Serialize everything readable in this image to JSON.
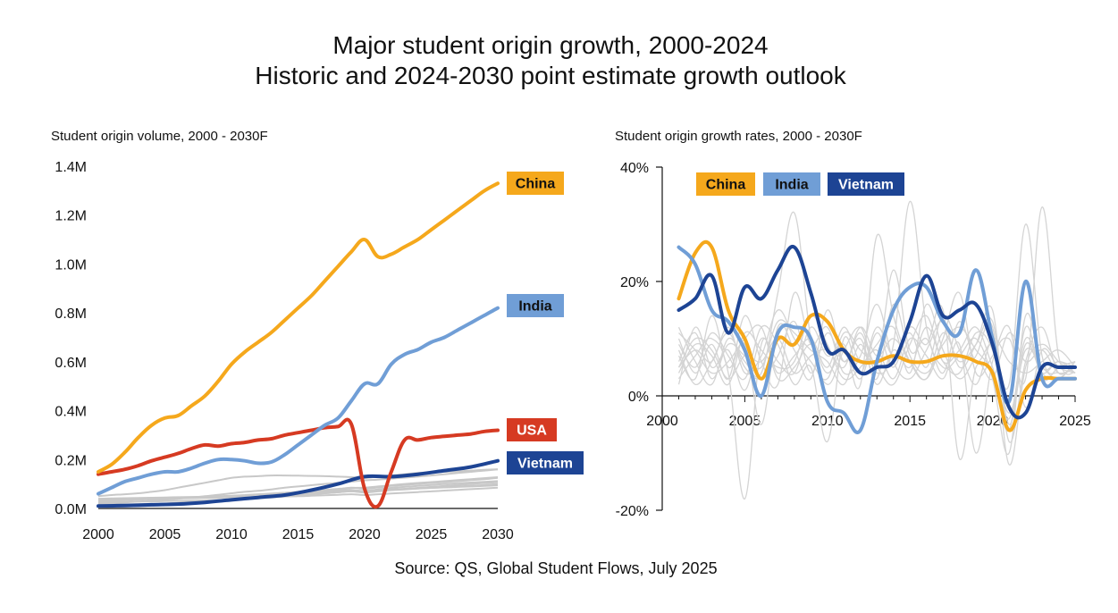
{
  "page": {
    "title_line1": "Major student origin growth, 2000-2024",
    "title_line2": "Historic and 2024-2030 point estimate growth outlook",
    "source": "Source: QS, Global Student Flows, July 2025"
  },
  "colors": {
    "China": "#f5a81c",
    "India": "#709ed6",
    "USA": "#d63a22",
    "Vietnam": "#1d4494",
    "background_series": "#c8c8c8",
    "axis": "#111111"
  },
  "chart_data": [
    {
      "type": "line",
      "title": "Student origin volume, 2000 - 2030F",
      "xlim": [
        2000,
        2030
      ],
      "ylim": [
        0,
        1400000
      ],
      "x_ticks": [
        2000,
        2005,
        2010,
        2015,
        2020,
        2025,
        2030
      ],
      "y_ticks": [
        {
          "value": 0,
          "label": "0.0M"
        },
        {
          "value": 200000,
          "label": "0.2M"
        },
        {
          "value": 400000,
          "label": "0.4M"
        },
        {
          "value": 600000,
          "label": "0.6M"
        },
        {
          "value": 800000,
          "label": "0.8M"
        },
        {
          "value": 1000000,
          "label": "1.0M"
        },
        {
          "value": 1200000,
          "label": "1.2M"
        },
        {
          "value": 1400000,
          "label": "1.4M"
        }
      ],
      "grid": false,
      "legend": "labels at line ends",
      "series": [
        {
          "name": "China",
          "x": [
            2000,
            2001,
            2002,
            2003,
            2004,
            2005,
            2006,
            2007,
            2008,
            2009,
            2010,
            2011,
            2012,
            2013,
            2014,
            2015,
            2016,
            2017,
            2018,
            2019,
            2020,
            2021,
            2022,
            2023,
            2024,
            2025,
            2026,
            2027,
            2028,
            2029,
            2030
          ],
          "values": [
            150000,
            180000,
            230000,
            290000,
            340000,
            370000,
            380000,
            420000,
            460000,
            520000,
            590000,
            640000,
            680000,
            720000,
            770000,
            820000,
            870000,
            930000,
            990000,
            1050000,
            1100000,
            1030000,
            1040000,
            1070000,
            1100000,
            1140000,
            1180000,
            1220000,
            1260000,
            1300000,
            1330000
          ]
        },
        {
          "name": "India",
          "x": [
            2000,
            2001,
            2002,
            2003,
            2004,
            2005,
            2006,
            2007,
            2008,
            2009,
            2010,
            2011,
            2012,
            2013,
            2014,
            2015,
            2016,
            2017,
            2018,
            2019,
            2020,
            2021,
            2022,
            2023,
            2024,
            2025,
            2026,
            2027,
            2028,
            2029,
            2030
          ],
          "values": [
            60000,
            85000,
            110000,
            125000,
            140000,
            150000,
            150000,
            165000,
            185000,
            200000,
            200000,
            195000,
            185000,
            190000,
            220000,
            260000,
            300000,
            340000,
            370000,
            440000,
            510000,
            510000,
            590000,
            630000,
            650000,
            680000,
            700000,
            730000,
            760000,
            790000,
            820000
          ]
        },
        {
          "name": "USA",
          "x": [
            2000,
            2001,
            2002,
            2003,
            2004,
            2005,
            2006,
            2007,
            2008,
            2009,
            2010,
            2011,
            2012,
            2013,
            2014,
            2015,
            2016,
            2017,
            2018,
            2019,
            2020,
            2021,
            2022,
            2023,
            2024,
            2025,
            2026,
            2027,
            2028,
            2029,
            2030
          ],
          "values": [
            140000,
            150000,
            160000,
            175000,
            195000,
            210000,
            225000,
            245000,
            260000,
            255000,
            265000,
            270000,
            280000,
            285000,
            300000,
            310000,
            320000,
            330000,
            335000,
            345000,
            80000,
            10000,
            150000,
            280000,
            280000,
            290000,
            295000,
            300000,
            305000,
            315000,
            320000
          ]
        },
        {
          "name": "Vietnam",
          "x": [
            2000,
            2002,
            2004,
            2006,
            2008,
            2010,
            2012,
            2014,
            2016,
            2018,
            2020,
            2022,
            2024,
            2026,
            2028,
            2030
          ],
          "values": [
            10000,
            12000,
            15000,
            18000,
            25000,
            35000,
            45000,
            55000,
            75000,
            100000,
            130000,
            130000,
            140000,
            155000,
            170000,
            195000
          ]
        }
      ],
      "labels": [
        {
          "series": "China",
          "text": "China"
        },
        {
          "series": "India",
          "text": "India"
        },
        {
          "series": "USA",
          "text": "USA"
        },
        {
          "series": "Vietnam",
          "text": "Vietnam"
        }
      ]
    },
    {
      "type": "line",
      "title": "Student origin growth rates, 2000 - 2030F",
      "xlim": [
        2000,
        2025
      ],
      "ylim": [
        -20,
        40
      ],
      "x_ticks": [
        2000,
        2005,
        2010,
        2015,
        2020,
        2025
      ],
      "y_ticks": [
        {
          "value": -20,
          "label": "-20%"
        },
        {
          "value": 0,
          "label": "0%"
        },
        {
          "value": 20,
          "label": "20%"
        },
        {
          "value": 40,
          "label": "40%"
        }
      ],
      "grid": false,
      "legend": "top-left",
      "series": [
        {
          "name": "China",
          "x": [
            2001,
            2002,
            2003,
            2004,
            2005,
            2006,
            2007,
            2008,
            2009,
            2010,
            2011,
            2012,
            2013,
            2014,
            2015,
            2016,
            2017,
            2018,
            2019,
            2020,
            2021,
            2022,
            2023,
            2024,
            2025
          ],
          "values": [
            17,
            25,
            26,
            15,
            10,
            3,
            10,
            9,
            14,
            13,
            8,
            6,
            6,
            7,
            6,
            6,
            7,
            7,
            6,
            4,
            -6,
            1,
            3,
            3,
            3
          ]
        },
        {
          "name": "India",
          "x": [
            2001,
            2002,
            2003,
            2004,
            2005,
            2006,
            2007,
            2008,
            2009,
            2010,
            2011,
            2012,
            2013,
            2014,
            2015,
            2016,
            2017,
            2018,
            2019,
            2020,
            2021,
            2022,
            2023,
            2024,
            2025
          ],
          "values": [
            26,
            23,
            15,
            13,
            8,
            0,
            11,
            12,
            10,
            -1,
            -3,
            -6,
            6,
            15,
            19,
            19,
            13,
            11,
            22,
            10,
            -1,
            20,
            3,
            3,
            3
          ]
        },
        {
          "name": "Vietnam",
          "x": [
            2001,
            2002,
            2003,
            2004,
            2005,
            2006,
            2007,
            2008,
            2009,
            2010,
            2011,
            2012,
            2013,
            2014,
            2015,
            2016,
            2017,
            2018,
            2019,
            2020,
            2021,
            2022,
            2023,
            2024,
            2025
          ],
          "values": [
            15,
            17,
            21,
            11,
            19,
            17,
            22,
            26,
            18,
            8,
            8,
            4,
            5,
            6,
            13,
            21,
            14,
            15,
            16,
            9,
            -2,
            -3,
            5,
            5,
            5
          ]
        }
      ],
      "legend_entries": [
        "China",
        "India",
        "Vietnam"
      ]
    }
  ],
  "background_series_left": [
    [
      20000,
      22000,
      25000,
      28000,
      32000,
      36000,
      40000,
      45000,
      50000,
      56000,
      62000,
      68000,
      72000,
      78000,
      85000,
      90000,
      95000,
      100000,
      105000,
      110000,
      115000,
      118000,
      122000,
      126000,
      130000,
      135000,
      140000,
      145000,
      150000,
      155000,
      160000
    ],
    [
      30000,
      32000,
      34000,
      36000,
      38000,
      40000,
      42000,
      44000,
      46000,
      48000,
      50000,
      53000,
      56000,
      60000,
      64000,
      68000,
      72000,
      76000,
      80000,
      84000,
      85000,
      90000,
      95000,
      100000,
      104000,
      108000,
      112000,
      116000,
      120000,
      124000,
      128000
    ],
    [
      50000,
      55000,
      58000,
      62000,
      68000,
      75000,
      85000,
      95000,
      105000,
      115000,
      125000,
      130000,
      132000,
      135000,
      135000,
      134000,
      133000,
      132000,
      130000,
      128000,
      125000,
      130000,
      135000,
      140000,
      145000,
      148000,
      150000,
      152000,
      155000,
      158000,
      160000
    ],
    [
      10000,
      12000,
      14000,
      16000,
      18000,
      20000,
      23000,
      26000,
      30000,
      34000,
      38000,
      42000,
      46000,
      50000,
      54000,
      58000,
      62000,
      66000,
      70000,
      74000,
      72000,
      78000,
      84000,
      88000,
      92000,
      96000,
      100000,
      103000,
      106000,
      109000,
      112000
    ],
    [
      40000,
      41000,
      42000,
      43000,
      44000,
      45000,
      46000,
      47000,
      48000,
      50000,
      52000,
      55000,
      58000,
      61000,
      64000,
      67000,
      70000,
      72000,
      74000,
      76000,
      70000,
      74000,
      78000,
      80000,
      82000,
      84000,
      86000,
      88000,
      90000,
      92000,
      95000
    ],
    [
      5000,
      6000,
      8000,
      10000,
      12000,
      15000,
      18000,
      21000,
      25000,
      29000,
      33000,
      37000,
      41000,
      45000,
      49000,
      54000,
      58000,
      62000,
      66000,
      70000,
      68000,
      72000,
      76000,
      80000,
      84000,
      88000,
      92000,
      96000,
      100000,
      104000,
      108000
    ],
    [
      25000,
      26000,
      27000,
      28000,
      29000,
      30000,
      31000,
      32000,
      33000,
      35000,
      37000,
      40000,
      43000,
      46000,
      50000,
      54000,
      58000,
      62000,
      66000,
      70000,
      65000,
      70000,
      75000,
      78000,
      81000,
      84000,
      87000,
      90000,
      93000,
      96000,
      100000
    ],
    [
      15000,
      16000,
      17000,
      18000,
      19000,
      20000,
      22000,
      24000,
      27000,
      30000,
      34000,
      38000,
      43000,
      48000,
      54000,
      60000,
      66000,
      72000,
      78000,
      85000,
      80000,
      86000,
      92000,
      96000,
      100000,
      104000,
      108000,
      112000,
      116000,
      120000,
      125000
    ],
    [
      35000,
      36000,
      37000,
      38000,
      39000,
      40000,
      41000,
      42000,
      43000,
      44000,
      45000,
      46000,
      47000,
      48000,
      49000,
      50000,
      52000,
      54000,
      56000,
      58000,
      55000,
      58000,
      61000,
      64000,
      67000,
      70000,
      73000,
      76000,
      79000,
      82000,
      85000
    ]
  ],
  "background_series_right": [
    [
      5,
      8,
      6,
      12,
      4,
      7,
      15,
      10,
      6,
      3,
      11,
      8,
      5,
      2,
      9,
      14,
      6,
      8,
      12,
      5,
      -4,
      10,
      4,
      3,
      6
    ],
    [
      10,
      4,
      9,
      3,
      14,
      6,
      2,
      18,
      9,
      12,
      4,
      7,
      16,
      6,
      3,
      8,
      13,
      5,
      9,
      15,
      -8,
      6,
      12,
      4,
      6
    ],
    [
      2,
      12,
      5,
      8,
      1,
      10,
      6,
      4,
      12,
      7,
      9,
      2,
      28,
      14,
      6,
      3,
      10,
      18,
      4,
      7,
      12,
      -2,
      8,
      5,
      4
    ],
    [
      7,
      3,
      14,
      5,
      9,
      -5,
      12,
      8,
      3,
      15,
      6,
      11,
      4,
      9,
      34,
      12,
      5,
      7,
      10,
      3,
      -10,
      14,
      5,
      6,
      5
    ],
    [
      12,
      6,
      2,
      10,
      6,
      4,
      18,
      32,
      10,
      2,
      8,
      12,
      6,
      22,
      8,
      10,
      4,
      13,
      6,
      9,
      2,
      30,
      7,
      4,
      5
    ],
    [
      4,
      9,
      7,
      2,
      11,
      8,
      5,
      6,
      14,
      9,
      3,
      5,
      9,
      12,
      4,
      16,
      8,
      3,
      7,
      12,
      -12,
      5,
      9,
      6,
      4
    ],
    [
      9,
      5,
      11,
      7,
      3,
      12,
      9,
      2,
      5,
      -8,
      10,
      4,
      12,
      7,
      11,
      5,
      14,
      8,
      2,
      10,
      6,
      4,
      6,
      8,
      5
    ],
    [
      6,
      11,
      3,
      9,
      7,
      5,
      13,
      11,
      8,
      6,
      2,
      9,
      3,
      16,
      7,
      4,
      9,
      12,
      8,
      4,
      -6,
      12,
      3,
      5,
      6
    ],
    [
      3,
      7,
      10,
      4,
      -18,
      9,
      4,
      7,
      10,
      5,
      12,
      6,
      8,
      3,
      10,
      7,
      3,
      9,
      -10,
      6,
      10,
      3,
      33,
      7,
      4
    ],
    [
      8,
      2,
      6,
      11,
      5,
      3,
      7,
      13,
      4,
      11,
      6,
      10,
      2,
      8,
      5,
      12,
      6,
      4,
      11,
      8,
      -3,
      8,
      5,
      3,
      6
    ],
    [
      11,
      8,
      4,
      6,
      10,
      12,
      3,
      5,
      9,
      4,
      8,
      3,
      11,
      5,
      12,
      9,
      15,
      -11,
      5,
      3,
      11,
      6,
      8,
      4,
      5
    ],
    [
      5,
      10,
      8,
      3,
      7,
      6,
      10,
      4,
      7,
      8,
      5,
      12,
      7,
      10,
      6,
      3,
      11,
      6,
      9,
      13,
      -5,
      9,
      4,
      6,
      4
    ]
  ]
}
